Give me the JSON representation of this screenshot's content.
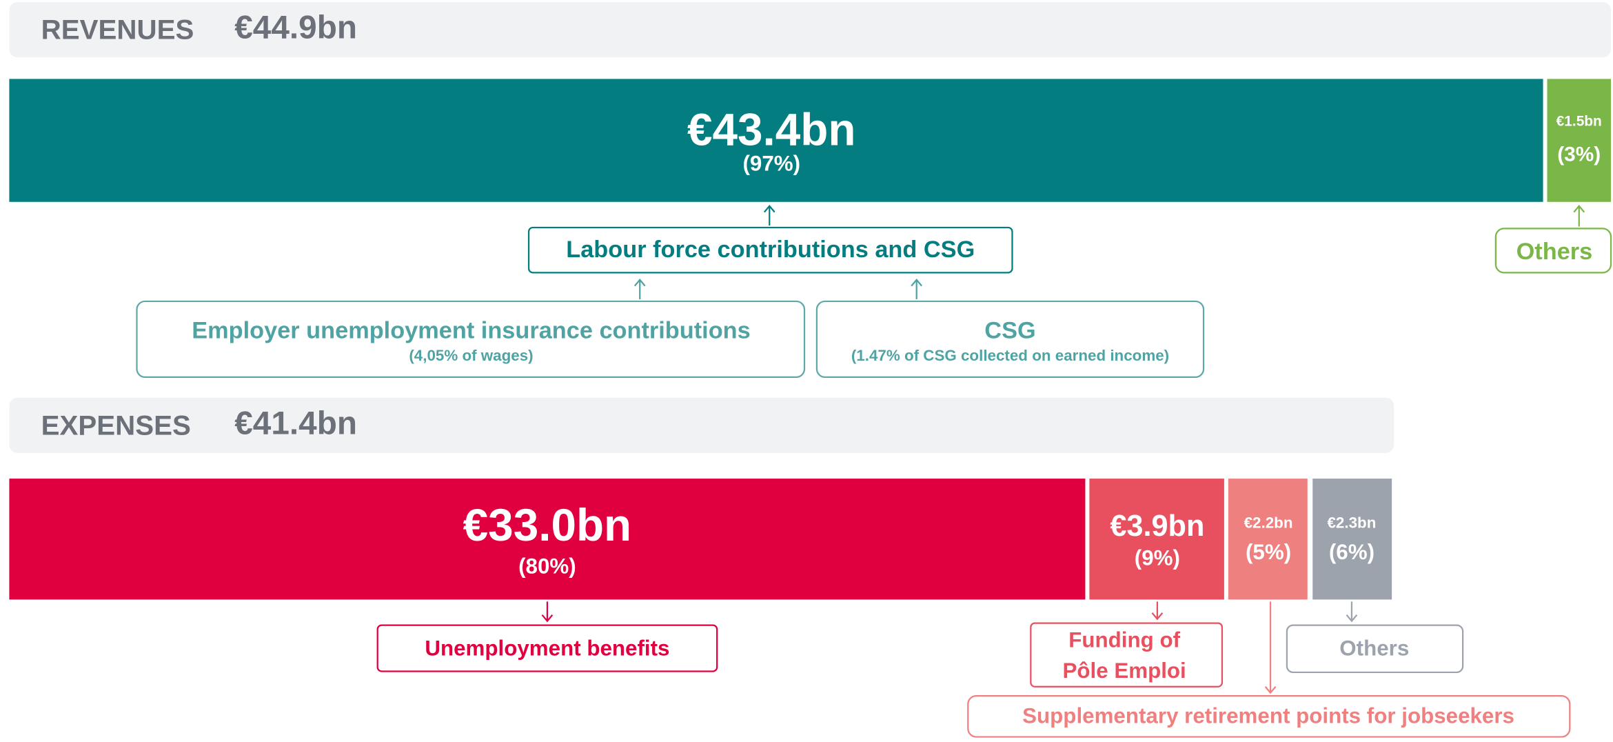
{
  "revenues": {
    "title": "REVENUES",
    "total": "€44.9bn",
    "segments": [
      {
        "amount": "€43.4bn",
        "share": "(97%)",
        "label": "Labour force contributions and CSG"
      },
      {
        "amount": "€1.5bn",
        "share": "(3%)",
        "label": "Others"
      }
    ],
    "sources": [
      {
        "label": "Employer unemployment insurance contributions",
        "note": "(4,05% of wages)"
      },
      {
        "label": "CSG",
        "note": "(1.47% of CSG collected on earned income)"
      }
    ]
  },
  "expenses": {
    "title": "EXPENSES",
    "total": "€41.4bn",
    "segments": [
      {
        "amount": "€33.0bn",
        "share": "(80%)",
        "label": "Unemployment benefits"
      },
      {
        "amount": "€3.9bn",
        "share": "(9%)",
        "label_lines": [
          "Funding of",
          "Pôle Emploi"
        ]
      },
      {
        "amount": "€2.2bn",
        "share": "(5%)",
        "label": "Supplementary retirement points for jobseekers"
      },
      {
        "amount": "€2.3bn",
        "share": "(6%)",
        "label": "Others"
      }
    ]
  }
}
